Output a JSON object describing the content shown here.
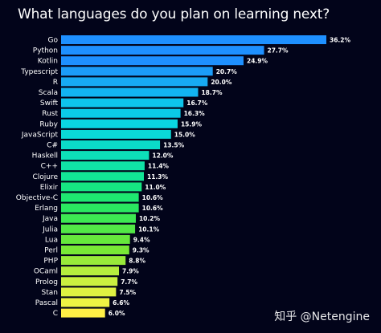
{
  "chart_data": {
    "type": "bar",
    "orientation": "horizontal",
    "title": "What languages do you plan on learning next?",
    "categories": [
      "Go",
      "Python",
      "Kotlin",
      "Typescript",
      "R",
      "Scala",
      "Swift",
      "Rust",
      "Ruby",
      "JavaScript",
      "C#",
      "Haskell",
      "C++",
      "Clojure",
      "Elixir",
      "Objective-C",
      "Erlang",
      "Java",
      "Julia",
      "Lua",
      "Perl",
      "PHP",
      "OCaml",
      "Prolog",
      "Stan",
      "Pascal",
      "C"
    ],
    "values": [
      36.2,
      27.7,
      24.9,
      20.7,
      20.0,
      18.7,
      16.7,
      16.3,
      15.9,
      15.0,
      13.5,
      12.0,
      11.4,
      11.3,
      11.0,
      10.6,
      10.6,
      10.2,
      10.1,
      9.4,
      9.3,
      8.8,
      7.9,
      7.7,
      7.5,
      6.6,
      6.0
    ],
    "value_labels": [
      "36.2%",
      "27.7%",
      "24.9%",
      "20.7%",
      "20.0%",
      "18.7%",
      "16.7%",
      "16.3%",
      "15.9%",
      "15.0%",
      "13.5%",
      "12.0%",
      "11.4%",
      "11.3%",
      "11.0%",
      "10.6%",
      "10.6%",
      "10.2%",
      "10.1%",
      "9.4%",
      "9.3%",
      "8.8%",
      "7.9%",
      "7.7%",
      "7.5%",
      "6.6%",
      "6.0%"
    ],
    "colors": [
      "#1e90ff",
      "#1e90ff",
      "#1e90ff",
      "#1b9cf8",
      "#17aaf3",
      "#12b4f2",
      "#0ec4ec",
      "#0bcbe8",
      "#0ad5e2",
      "#0ad9d8",
      "#0bdcc8",
      "#0ddfb8",
      "#10e2a6",
      "#12e596",
      "#16e682",
      "#1ee870",
      "#2ae760",
      "#3de852",
      "#52e846",
      "#66e83c",
      "#78e836",
      "#98ea3a",
      "#b5ed3e",
      "#caf040",
      "#dff242",
      "#eef444",
      "#fff046"
    ],
    "grid": false,
    "legend": "none"
  },
  "watermark": "知乎 @Netengine"
}
